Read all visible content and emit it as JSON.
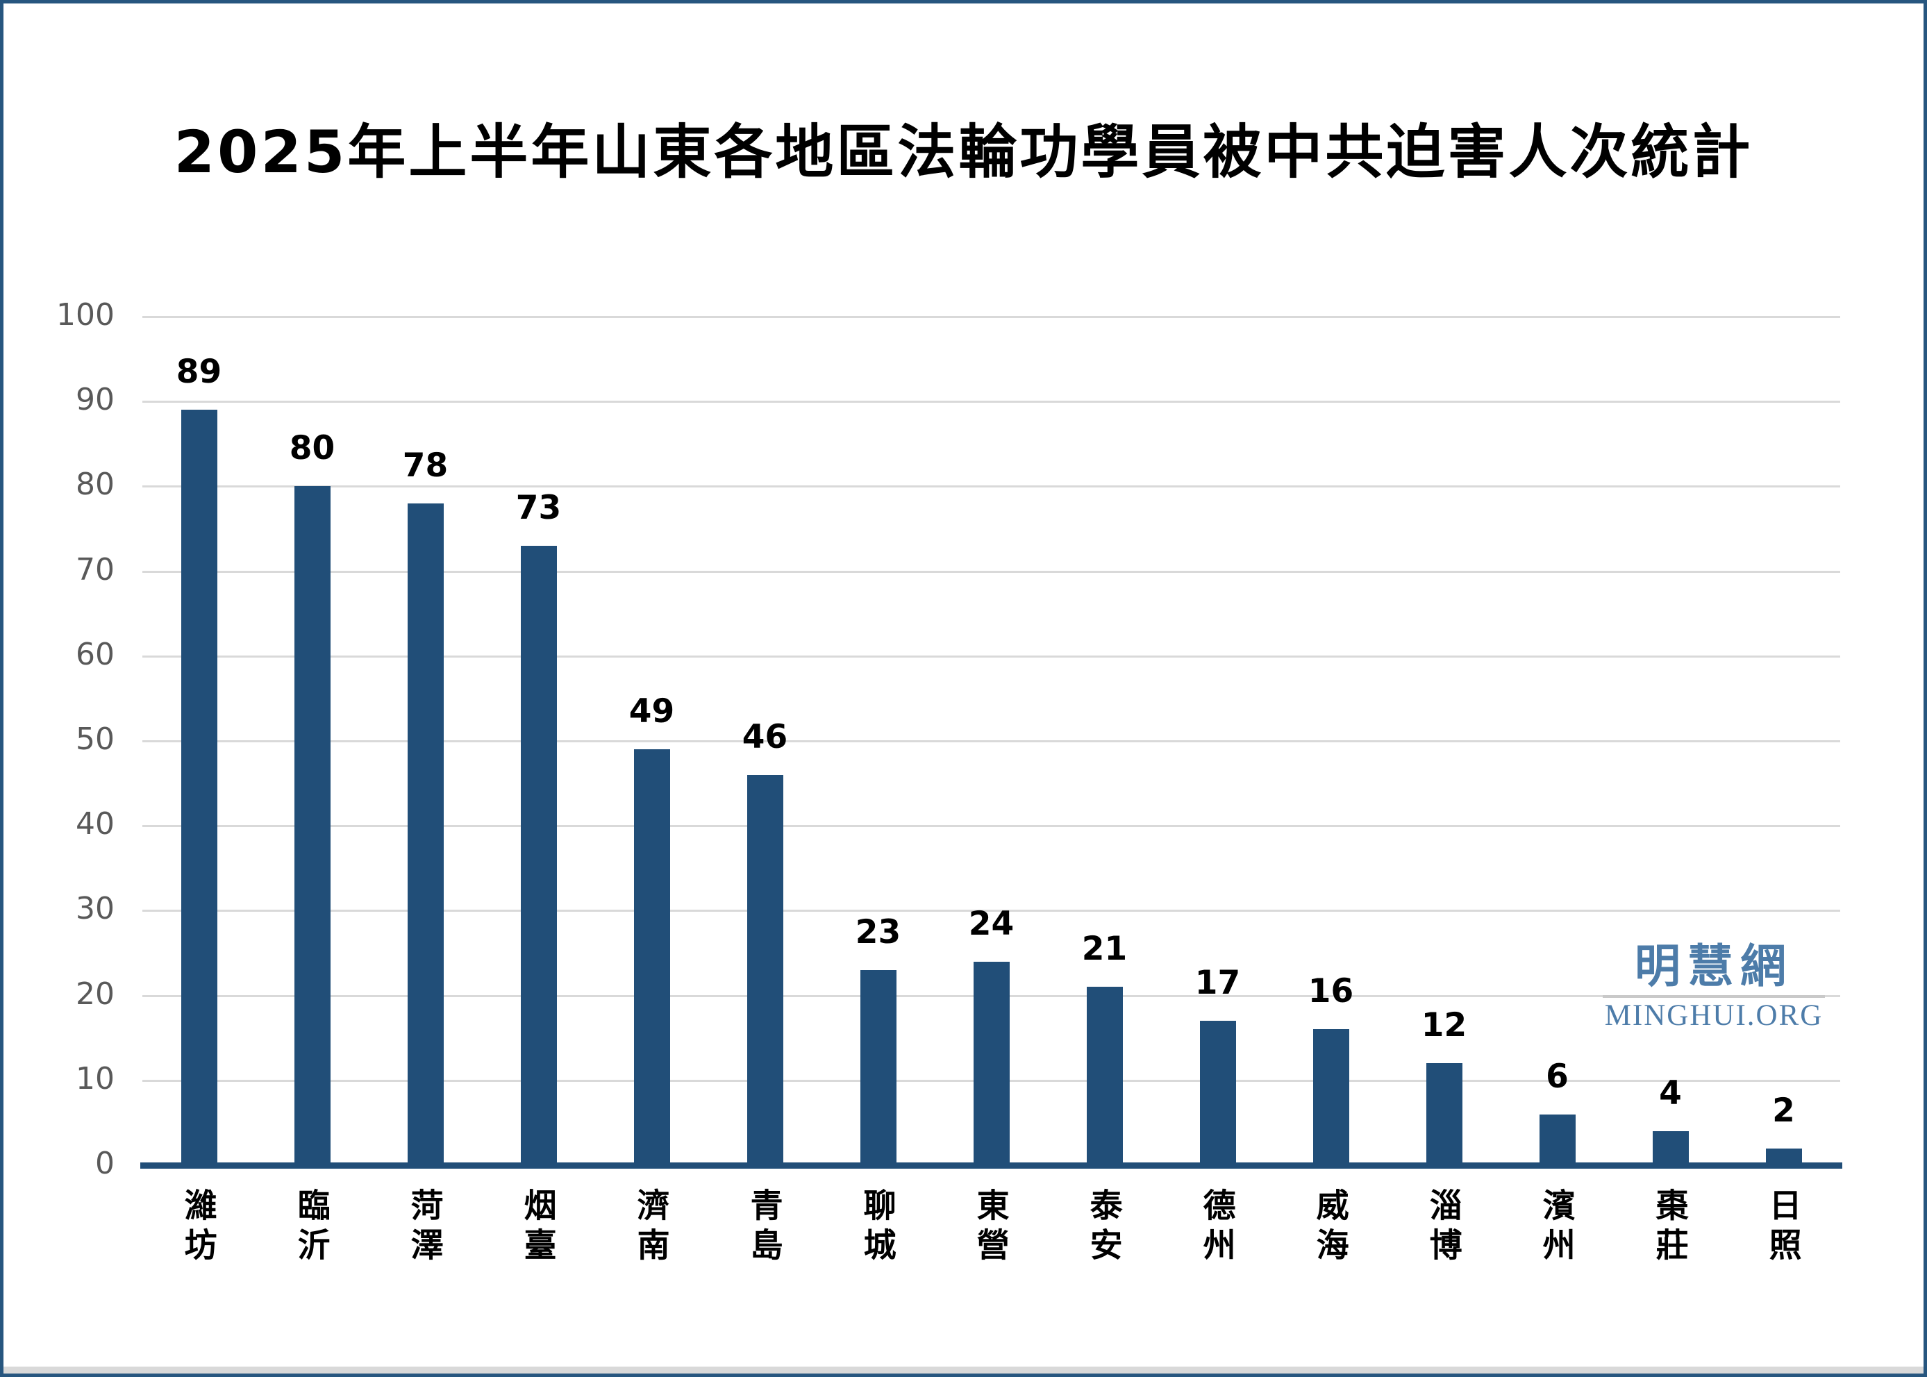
{
  "title": "2025年上半年山東各地區法輪功學員被中共迫害人次統計",
  "watermark": {
    "cjk": "明慧網",
    "latin": "MINGHUI.ORG",
    "color": "#4D7CA9"
  },
  "colors": {
    "bar": "#214E78",
    "axis_line": "#214E78",
    "gridline": "#D9D9D9",
    "tick_label": "#595959",
    "data_label": "#000000",
    "page_border": "#27567F"
  },
  "chart_data": {
    "type": "bar",
    "title": "2025年上半年山東各地區法輪功學員被中共迫害人次統計",
    "categories": [
      "濰坊",
      "臨沂",
      "菏澤",
      "烟臺",
      "濟南",
      "青島",
      "聊城",
      "東營",
      "泰安",
      "德州",
      "威海",
      "淄博",
      "濱州",
      "棗莊",
      "日照"
    ],
    "values": [
      89,
      80,
      78,
      73,
      49,
      46,
      23,
      24,
      21,
      17,
      16,
      12,
      6,
      4,
      2
    ],
    "xlabel": "",
    "ylabel": "",
    "ylim": [
      0,
      100
    ],
    "yticks": [
      0,
      10,
      20,
      30,
      40,
      50,
      60,
      70,
      80,
      90,
      100
    ],
    "grid": true,
    "legend": "none",
    "data_labels": "above-bars"
  }
}
